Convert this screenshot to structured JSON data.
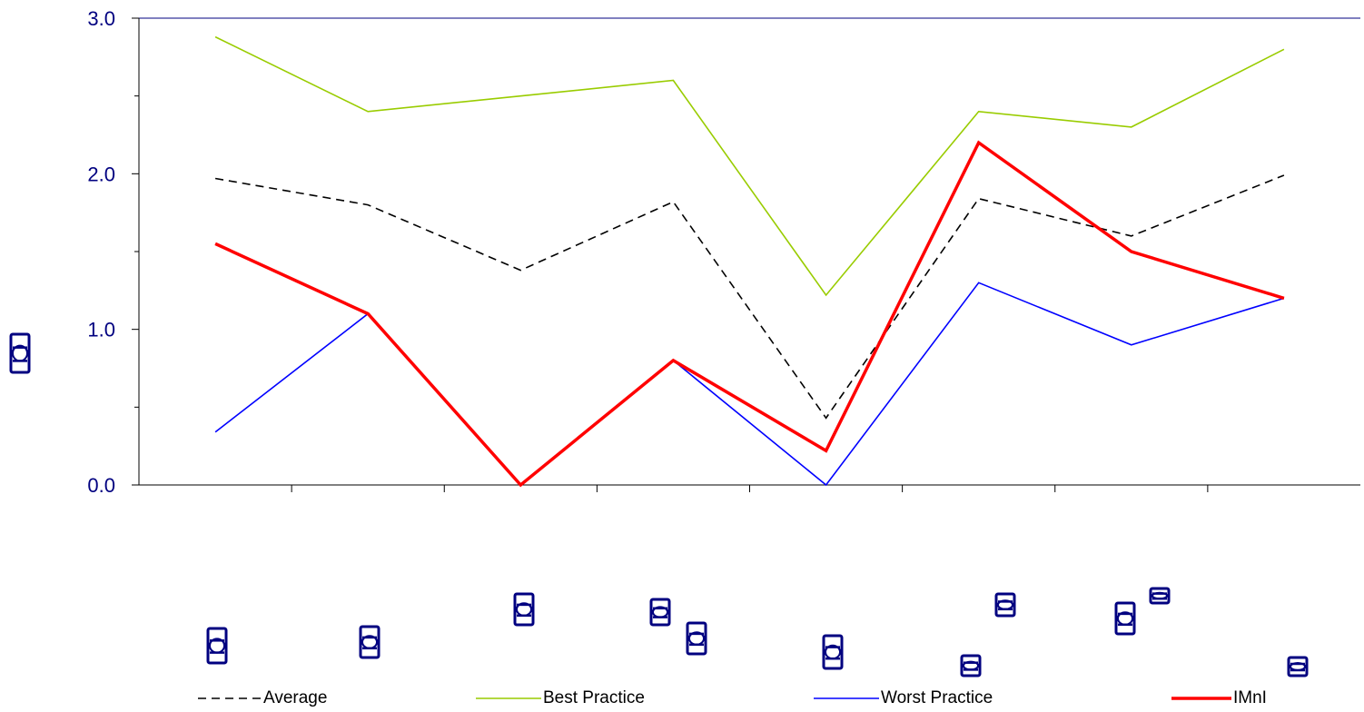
{
  "chart_data": {
    "type": "line",
    "title": "",
    "xlabel": "",
    "ylabel": "",
    "categories": [
      "",
      "",
      "",
      "",
      "",
      "",
      "",
      ""
    ],
    "ylim": [
      0,
      3
    ],
    "yticks": [
      "0.0",
      "1.0",
      "2.0",
      "3.0"
    ],
    "grid": false,
    "legend_position": "bottom",
    "series": [
      {
        "name": "Average",
        "color": "#000000",
        "style": "dashed",
        "values": [
          1.97,
          1.8,
          1.38,
          1.82,
          0.43,
          1.84,
          1.6,
          1.99
        ]
      },
      {
        "name": "Best Practice",
        "color": "#99cc00",
        "style": "solid",
        "values": [
          2.88,
          2.4,
          2.5,
          2.6,
          1.22,
          2.4,
          2.3,
          2.8
        ]
      },
      {
        "name": "Worst Practice",
        "color": "#0000ff",
        "style": "solid",
        "values": [
          0.34,
          1.1,
          0.0,
          0.8,
          0.0,
          1.3,
          0.9,
          1.2
        ]
      },
      {
        "name": "IMnI",
        "color": "#ff0000",
        "style": "solid-thick",
        "values": [
          1.55,
          1.1,
          0.0,
          0.8,
          0.22,
          2.2,
          1.5,
          1.2
        ]
      }
    ]
  },
  "colors": {
    "axis": "#000080",
    "tick_text": "#000080"
  }
}
